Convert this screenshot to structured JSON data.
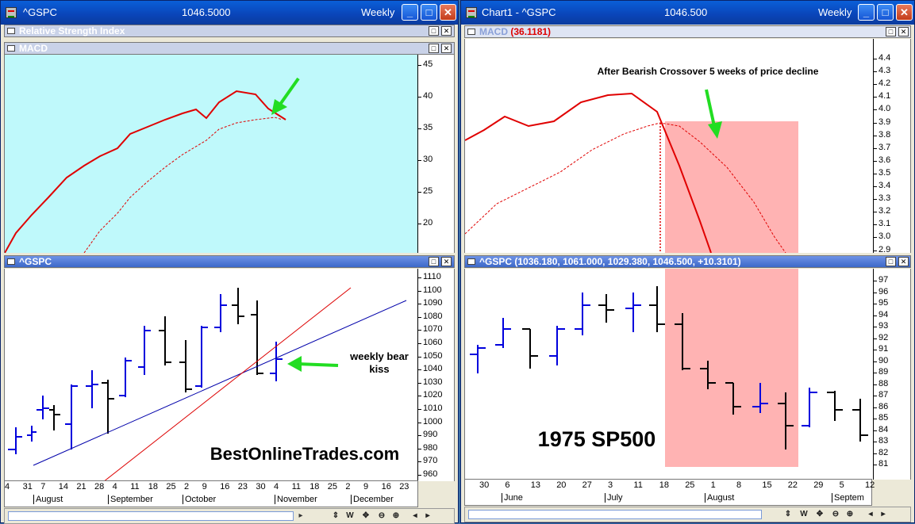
{
  "left": {
    "title": {
      "symbol": "^GSPC",
      "price": "1046.5000",
      "period": "Weekly"
    },
    "panes": {
      "rsi": "Relative Strength Index",
      "macd": "MACD",
      "price": "^GSPC"
    },
    "macd_axis": [
      "45",
      "40",
      "35",
      "30",
      "25",
      "20"
    ],
    "price_axis": [
      "1110",
      "1100",
      "1090",
      "1080",
      "1070",
      "1060",
      "1050",
      "1040",
      "1030",
      "1020",
      "1010",
      "1000",
      "990",
      "980",
      "970",
      "960"
    ],
    "x_days": [
      "4",
      "31",
      "7",
      "14",
      "21",
      "28",
      "4",
      "11",
      "18",
      "25",
      "2",
      "9",
      "16",
      "23",
      "30",
      "4",
      "11",
      "18",
      "25",
      "2",
      "9",
      "16",
      "23"
    ],
    "x_months": [
      "August",
      "September",
      "October",
      "November",
      "December"
    ],
    "annotation": "weekly bear kiss",
    "watermark": "BestOnlineTrades.com"
  },
  "right": {
    "title": {
      "symbol": "Chart1 - ^GSPC",
      "price": "1046.500",
      "period": "Weekly"
    },
    "macd_pane": {
      "label": "MACD",
      "value": "(36.1181)"
    },
    "price_pane": {
      "label": "^GSPC",
      "values": "(1036.180, 1061.000, 1029.380, 1046.500, +10.3101)"
    },
    "macd_axis": [
      "4.4",
      "4.3",
      "4.2",
      "4.1",
      "4.0",
      "3.9",
      "3.8",
      "3.7",
      "3.6",
      "3.5",
      "3.4",
      "3.3",
      "3.2",
      "3.1",
      "3.0",
      "2.9"
    ],
    "price_axis": [
      "97",
      "96",
      "95",
      "94",
      "93",
      "92",
      "91",
      "90",
      "89",
      "88",
      "87",
      "86",
      "85",
      "84",
      "83",
      "82",
      "81"
    ],
    "x_days": [
      "30",
      "6",
      "13",
      "20",
      "27",
      "3",
      "11",
      "18",
      "25",
      "1",
      "8",
      "15",
      "22",
      "29",
      "5",
      "12"
    ],
    "x_months": [
      "June",
      "July",
      "August",
      "Septem"
    ],
    "annotation": "After Bearish Crossover 5 weeks of price decline",
    "big_label": "1975 SP500"
  },
  "colors": {
    "macd_bg": "#bff9fb",
    "macd_line": "#e00000",
    "up_bar": "#0000dd",
    "down_bar": "#000000",
    "highlight": "#ffb3b3",
    "arrow": "#22dd22"
  }
}
